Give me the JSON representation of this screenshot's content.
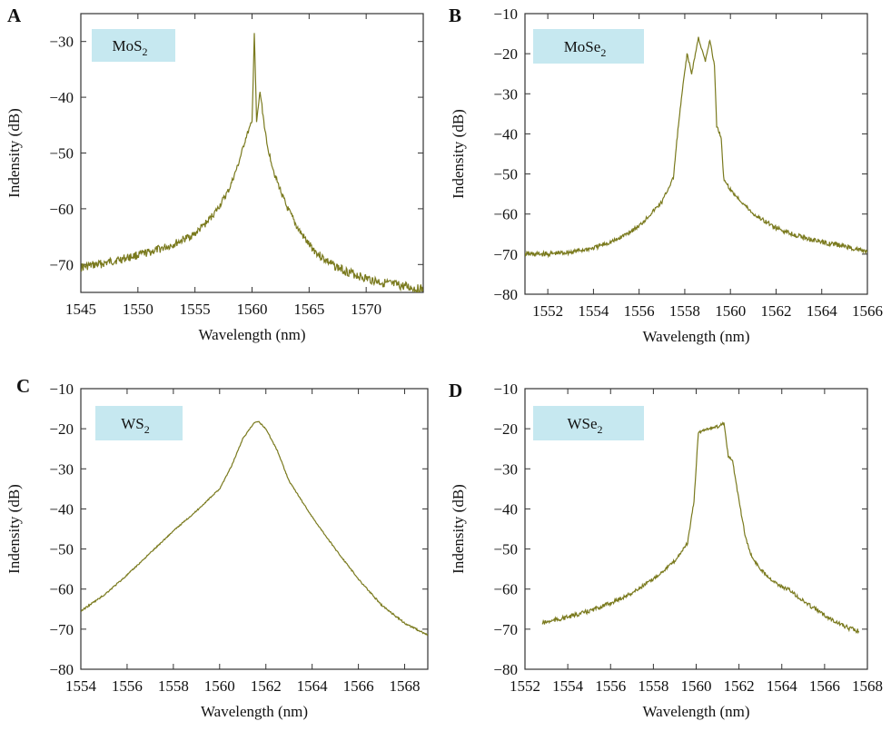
{
  "colors": {
    "trace": "#7a7a1e",
    "legend_bg": "#c6e8f0",
    "axis": "#333333"
  },
  "chart_data": [
    {
      "panel": "A",
      "type": "line",
      "legend": {
        "main": "MoS",
        "sub": "2"
      },
      "xlabel": "Wavelength (nm)",
      "ylabel": "Indensity (dB)",
      "xlim": [
        1545,
        1575
      ],
      "ylim": [
        -75,
        -25
      ],
      "xticks": [
        1545,
        1550,
        1555,
        1560,
        1565,
        1570
      ],
      "yticks": [
        -30,
        -40,
        -50,
        -60,
        -70
      ],
      "tick_labels_x": [
        "1545",
        "1550",
        "1555",
        "1560",
        "1565",
        "1570"
      ],
      "tick_labels_y": [
        "−30",
        "−40",
        "−50",
        "−60",
        "−70"
      ],
      "series": [
        {
          "x": [
            1545,
            1547,
            1549,
            1551,
            1553,
            1555,
            1556,
            1557,
            1558,
            1558.8,
            1559.5,
            1560,
            1560.2,
            1560.4,
            1560.7,
            1561.3,
            1562,
            1563,
            1564,
            1565,
            1566,
            1567,
            1568,
            1570,
            1572,
            1575
          ],
          "y": [
            -70.5,
            -69.8,
            -68.8,
            -67.8,
            -66.5,
            -64.5,
            -62.5,
            -60,
            -56.5,
            -52,
            -47,
            -44.5,
            -28.5,
            -44.5,
            -39,
            -48.5,
            -54,
            -59.5,
            -63.5,
            -66.5,
            -68.5,
            -70,
            -71,
            -72.5,
            -73.5,
            -74.5
          ]
        }
      ]
    },
    {
      "panel": "B",
      "type": "line",
      "legend": {
        "main": "MoSe",
        "sub": "2"
      },
      "xlabel": "Wavelength (nm)",
      "ylabel": "Indensity (dB)",
      "xlim": [
        1551,
        1566
      ],
      "ylim": [
        -80,
        -10
      ],
      "xticks": [
        1552,
        1554,
        1556,
        1558,
        1560,
        1562,
        1564,
        1566
      ],
      "yticks": [
        -10,
        -20,
        -30,
        -40,
        -50,
        -60,
        -70,
        -80
      ],
      "tick_labels_x": [
        "1552",
        "1554",
        "1556",
        "1558",
        "1560",
        "1562",
        "1564",
        "1566"
      ],
      "tick_labels_y": [
        "−10",
        "−20",
        "−30",
        "−40",
        "−50",
        "−60",
        "−70",
        "−80"
      ],
      "series": [
        {
          "x": [
            1551,
            1552,
            1553,
            1554,
            1555,
            1556,
            1557,
            1557.5,
            1557.7,
            1557.9,
            1558.1,
            1558.3,
            1558.6,
            1558.9,
            1559.1,
            1559.3,
            1559.4,
            1559.6,
            1559.7,
            1560,
            1561,
            1562,
            1563,
            1564,
            1565,
            1566
          ],
          "y": [
            -70,
            -70,
            -69.5,
            -68.5,
            -66.5,
            -63,
            -57,
            -51,
            -39,
            -29,
            -20,
            -25,
            -16,
            -22,
            -16.5,
            -23,
            -38,
            -41,
            -51,
            -54,
            -60,
            -63.5,
            -65.5,
            -67,
            -68,
            -69.5
          ]
        }
      ]
    },
    {
      "panel": "C",
      "type": "line",
      "legend": {
        "main": "WS",
        "sub": "2"
      },
      "xlabel": "Wavelength (nm)",
      "ylabel": "Indensity (dB)",
      "xlim": [
        1554,
        1569
      ],
      "ylim": [
        -80,
        -10
      ],
      "xticks": [
        1554,
        1556,
        1558,
        1560,
        1562,
        1564,
        1566,
        1568
      ],
      "yticks": [
        -10,
        -20,
        -30,
        -40,
        -50,
        -60,
        -70,
        -80
      ],
      "tick_labels_x": [
        "1554",
        "1556",
        "1558",
        "1560",
        "1562",
        "1564",
        "1566",
        "1568"
      ],
      "tick_labels_y": [
        "−10",
        "−20",
        "−30",
        "−40",
        "−50",
        "−60",
        "−70",
        "−80"
      ],
      "series": [
        {
          "x": [
            1554,
            1555,
            1556,
            1557,
            1558,
            1559,
            1560,
            1560.5,
            1561,
            1561.5,
            1561.7,
            1562,
            1562.5,
            1563,
            1564,
            1565,
            1566,
            1567,
            1568,
            1569
          ],
          "y": [
            -65.5,
            -61.5,
            -56.5,
            -51,
            -45.5,
            -40.5,
            -35,
            -29.5,
            -22.5,
            -18.5,
            -18.3,
            -20,
            -25.5,
            -33,
            -42,
            -50,
            -57.5,
            -64,
            -68.5,
            -71.5
          ]
        }
      ]
    },
    {
      "panel": "D",
      "type": "line",
      "legend": {
        "main": "WSe",
        "sub": "2"
      },
      "xlabel": "Wavelength (nm)",
      "ylabel": "Indensity (dB)",
      "xlim": [
        1552,
        1568
      ],
      "ylim": [
        -80,
        -10
      ],
      "xticks": [
        1552,
        1554,
        1556,
        1558,
        1560,
        1562,
        1564,
        1566,
        1568
      ],
      "yticks": [
        -10,
        -20,
        -30,
        -40,
        -50,
        -60,
        -70,
        -80
      ],
      "tick_labels_x": [
        "1552",
        "1554",
        "1556",
        "1558",
        "1560",
        "1562",
        "1564",
        "1566",
        "1568"
      ],
      "tick_labels_y": [
        "−10",
        "−20",
        "−30",
        "−40",
        "−50",
        "−60",
        "−70",
        "−80"
      ],
      "series": [
        {
          "x": [
            1552.8,
            1554,
            1555,
            1556,
            1557,
            1558,
            1559,
            1559.6,
            1559.9,
            1560.1,
            1560.5,
            1561,
            1561.3,
            1561.5,
            1561.7,
            1562,
            1562.3,
            1562.6,
            1563,
            1563.5,
            1564,
            1564.3,
            1565,
            1566,
            1567,
            1567.6
          ],
          "y": [
            -68.5,
            -67,
            -65.5,
            -63.5,
            -61,
            -57.5,
            -53,
            -48.5,
            -38,
            -21,
            -20,
            -19.5,
            -18.5,
            -27,
            -28,
            -38,
            -47,
            -52,
            -55,
            -57.5,
            -59.5,
            -60,
            -63,
            -66.5,
            -69.5,
            -70.5
          ]
        }
      ]
    }
  ]
}
